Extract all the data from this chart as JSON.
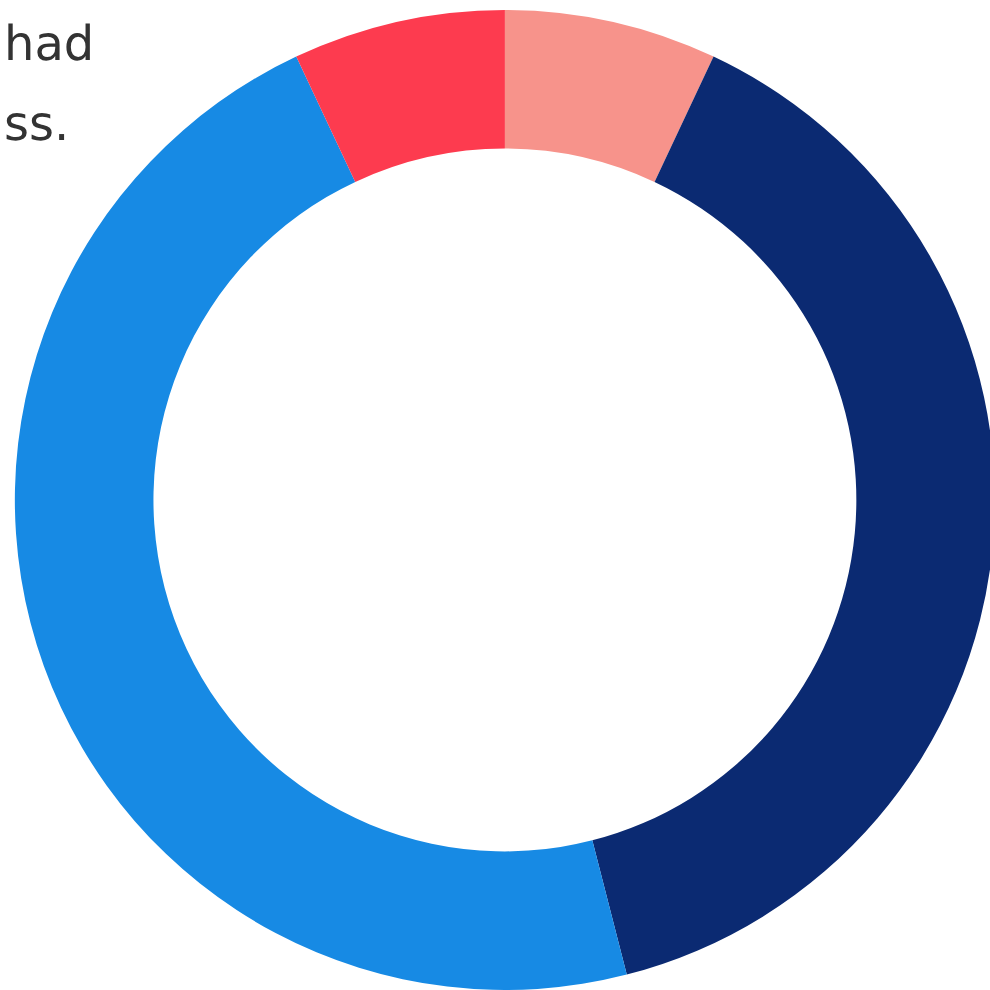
{
  "chart_data": {
    "type": "donut",
    "categories": [
      null,
      null,
      null,
      null
    ],
    "values": [
      7,
      39,
      47,
      7
    ],
    "colors": [
      "#f7938b",
      "#0b2a72",
      "#178ae4",
      "#fd3b4f"
    ],
    "annotations": [
      "had\nss."
    ]
  }
}
